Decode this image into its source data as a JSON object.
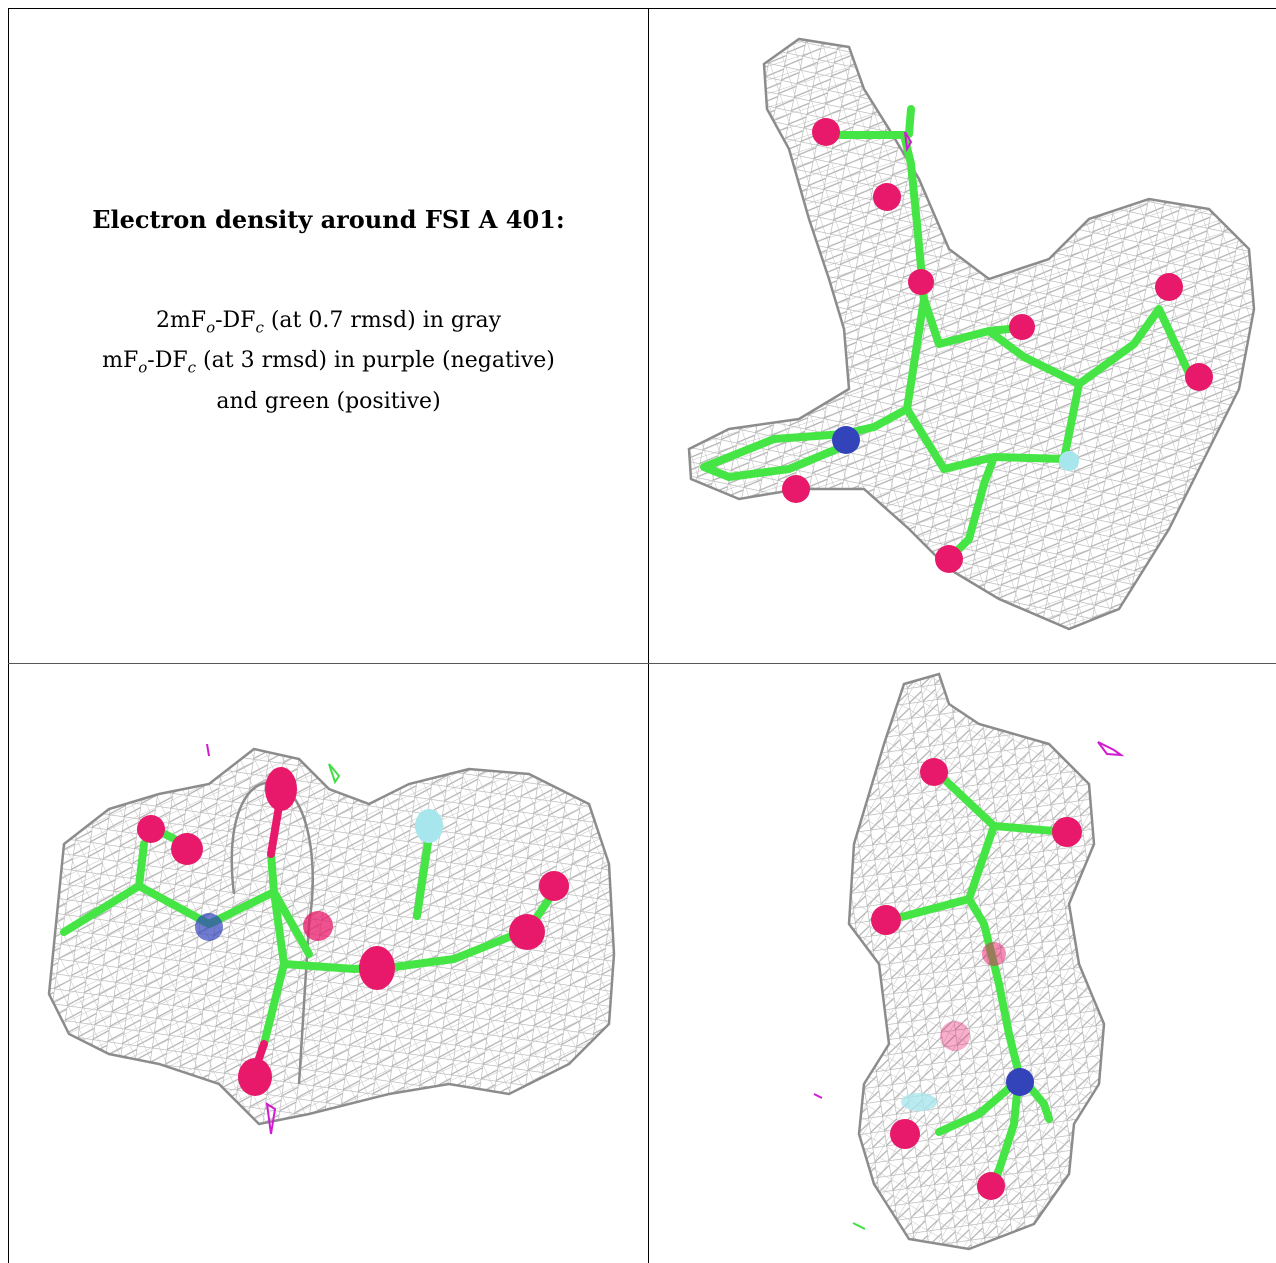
{
  "legend": {
    "title": "Electron density around FSI A 401:",
    "line1_prefix": "2mF",
    "line1_sub1": "o",
    "line1_mid": "-DF",
    "line1_sub2": "c",
    "line1_suffix": " (at 0.7 rmsd) in gray",
    "line2_prefix": "mF",
    "line2_sub1": "o",
    "line2_mid": "-DF",
    "line2_sub2": "c",
    "line2_suffix": " (at 3 rmsd) in purple (negative)",
    "line3": "and green (positive)"
  },
  "colors": {
    "mesh_2fofc": "#a9a9a9",
    "carbon": "#44e544",
    "oxygen": "#e8196a",
    "nitrogen": "#3344bb",
    "fluorine": "#a8e6ee",
    "difference_negative": "#d21ad2",
    "difference_positive": "#44dd44"
  }
}
